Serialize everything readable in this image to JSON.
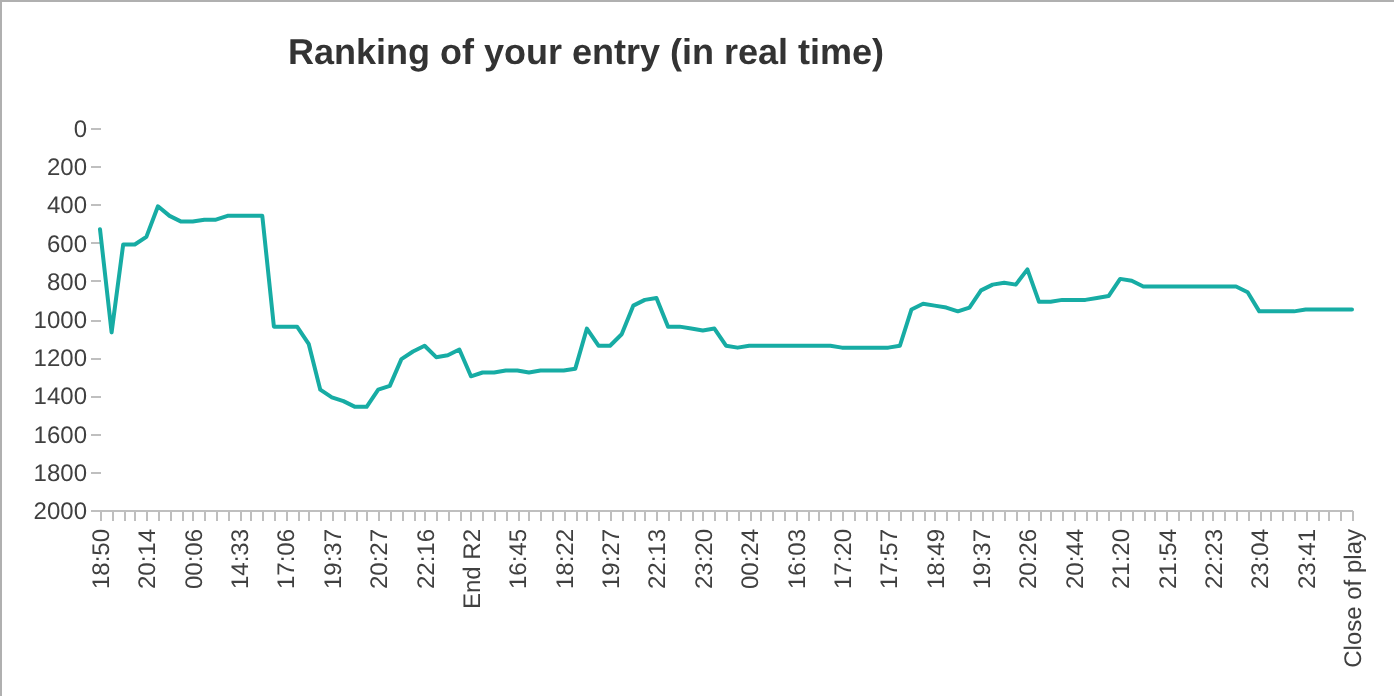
{
  "chart_data": {
    "type": "line",
    "title": "Ranking of your entry (in real time)",
    "categories": [
      "18:50",
      null,
      null,
      null,
      "20:14",
      null,
      null,
      null,
      "00:06",
      null,
      null,
      null,
      "14:33",
      null,
      null,
      null,
      "17:06",
      null,
      null,
      null,
      "19:37",
      null,
      null,
      null,
      "20:27",
      null,
      null,
      null,
      "22:16",
      null,
      null,
      null,
      "End R2",
      null,
      null,
      null,
      "16:45",
      null,
      null,
      null,
      "18:22",
      null,
      null,
      null,
      "19:27",
      null,
      null,
      null,
      "22:13",
      null,
      null,
      null,
      "23:20",
      null,
      null,
      null,
      "00:24",
      null,
      null,
      null,
      "16:03",
      null,
      null,
      null,
      "17:20",
      null,
      null,
      null,
      "17:57",
      null,
      null,
      null,
      "18:49",
      null,
      null,
      null,
      "19:37",
      null,
      null,
      null,
      "20:26",
      null,
      null,
      null,
      "20:44",
      null,
      null,
      null,
      "21:20",
      null,
      null,
      null,
      "21:54",
      null,
      null,
      null,
      "22:23",
      null,
      null,
      null,
      "23:04",
      null,
      null,
      null,
      "23:41",
      null,
      null,
      null,
      "Close of play"
    ],
    "series": [
      {
        "color": "#17aca4",
        "values": [
          530,
          1070,
          610,
          610,
          570,
          410,
          460,
          490,
          490,
          480,
          480,
          460,
          460,
          460,
          460,
          1040,
          1040,
          1040,
          1130,
          1370,
          1410,
          1430,
          1460,
          1460,
          1370,
          1350,
          1210,
          1170,
          1140,
          1200,
          1190,
          1160,
          1300,
          1280,
          1280,
          1270,
          1270,
          1280,
          1270,
          1270,
          1270,
          1260,
          1050,
          1140,
          1140,
          1080,
          930,
          900,
          890,
          1040,
          1040,
          1050,
          1060,
          1050,
          1140,
          1150,
          1140,
          1140,
          1140,
          1140,
          1140,
          1140,
          1140,
          1140,
          1150,
          1150,
          1150,
          1150,
          1150,
          1140,
          950,
          920,
          930,
          940,
          960,
          940,
          850,
          820,
          810,
          820,
          740,
          910,
          910,
          900,
          900,
          900,
          890,
          880,
          790,
          800,
          830,
          830,
          830,
          830,
          830,
          830,
          830,
          830,
          830,
          860,
          960,
          960,
          960,
          960,
          950,
          950,
          950,
          950,
          950
        ]
      }
    ],
    "ylim": [
      2000,
      0
    ],
    "yticks": [
      0,
      200,
      400,
      600,
      800,
      1000,
      1200,
      1400,
      1600,
      1800,
      2000
    ],
    "marker": "none",
    "line_style": "solid"
  }
}
